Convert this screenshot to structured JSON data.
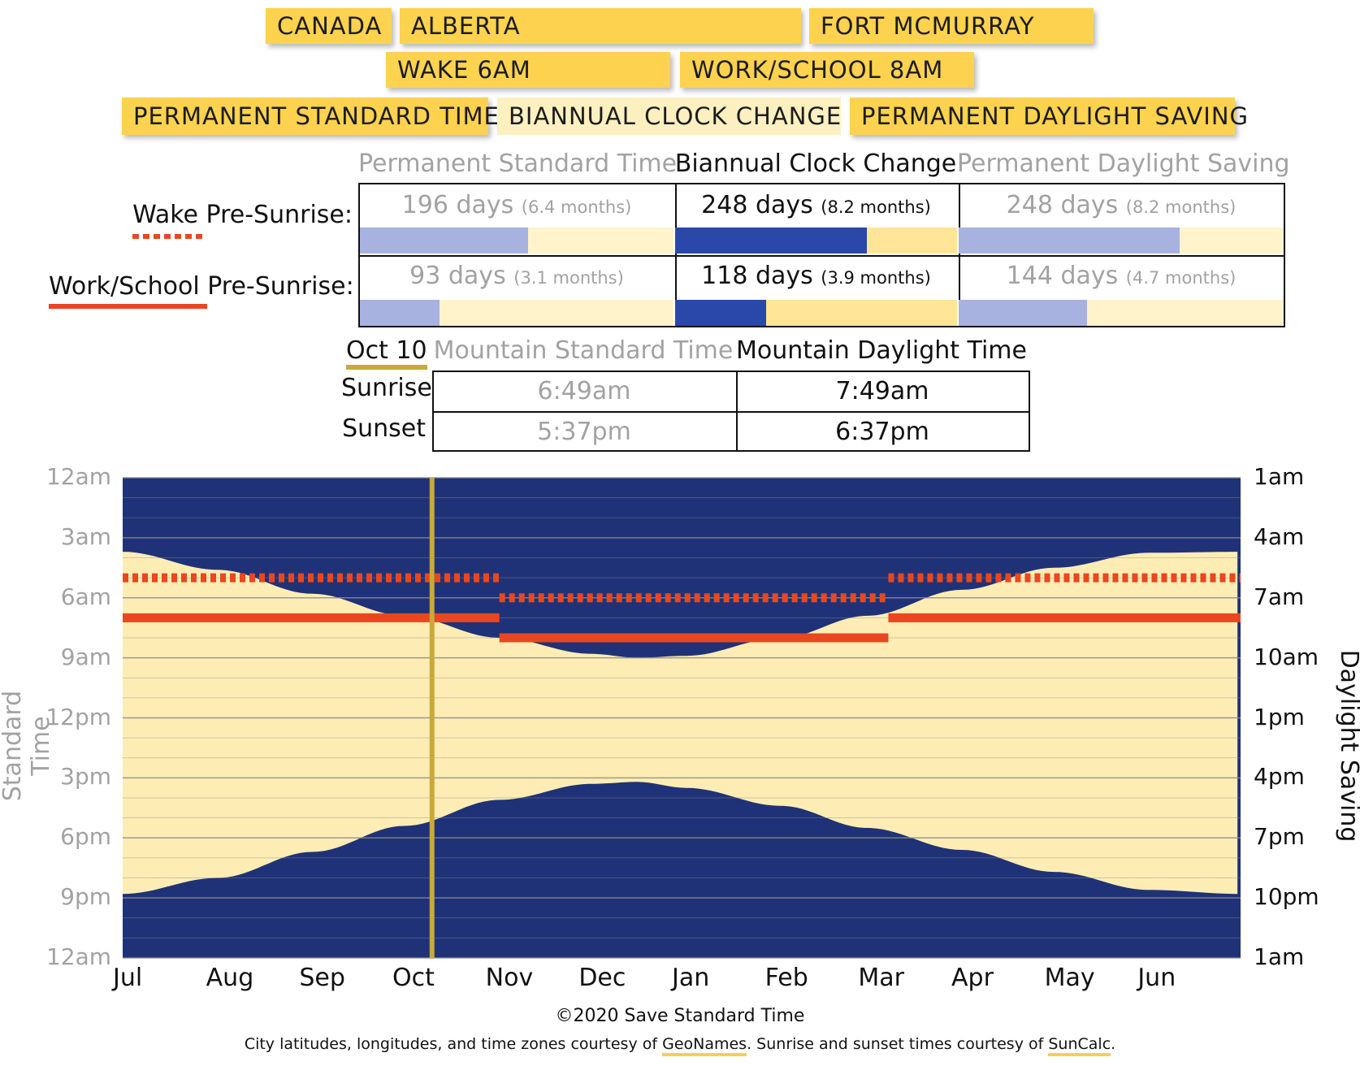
{
  "location": {
    "country": "CANADA",
    "province": "ALBERTA",
    "city": "FORT MCMURRAY"
  },
  "schedule": {
    "wake": "WAKE 6AM",
    "work": "WORK/SCHOOL 8AM"
  },
  "policies": [
    {
      "label": "PERMANENT STANDARD TIME",
      "selected": false
    },
    {
      "label": "BIANNUAL CLOCK CHANGE",
      "selected": true
    },
    {
      "label": "PERMANENT DAYLIGHT SAVING",
      "selected": false
    }
  ],
  "comparison": {
    "columns": [
      "Permanent Standard Time",
      "Biannual Clock Change",
      "Permanent Daylight Saving"
    ],
    "rows": [
      {
        "label_key": "Wake",
        "label_rest": " Pre-Sunrise:",
        "cells": [
          {
            "days": "196 days",
            "months": "(6.4 months)",
            "fraction": 0.537
          },
          {
            "days": "248 days",
            "months": "(8.2 months)",
            "fraction": 0.679
          },
          {
            "days": "248 days",
            "months": "(8.2 months)",
            "fraction": 0.679
          }
        ]
      },
      {
        "label_key": "Work/School",
        "label_rest": " Pre-Sunrise:",
        "cells": [
          {
            "days": "93 days",
            "months": "(3.1 months)",
            "fraction": 0.255
          },
          {
            "days": "118 days",
            "months": "(3.9 months)",
            "fraction": 0.323
          },
          {
            "days": "144 days",
            "months": "(4.7 months)",
            "fraction": 0.395
          }
        ]
      }
    ]
  },
  "day_detail": {
    "date": "Oct 10",
    "col_standard": "Mountain Standard Time",
    "col_daylight": "Mountain Daylight Time",
    "sunrise_label": "Sunrise",
    "sunset_label": "Sunset",
    "sunrise_standard": "6:49am",
    "sunrise_daylight": "7:49am",
    "sunset_standard": "5:37pm",
    "sunset_daylight": "6:37pm"
  },
  "chart_data": {
    "type": "area",
    "x_categories": [
      "Jul",
      "Aug",
      "Sep",
      "Oct",
      "Nov",
      "Dec",
      "Jan",
      "Feb",
      "Mar",
      "Apr",
      "May",
      "Jun"
    ],
    "ylabel_left": "Standard Time",
    "ylabel_right": "Daylight Saving",
    "yticks_left": [
      "12am",
      "3am",
      "6am",
      "9am",
      "12pm",
      "3pm",
      "6pm",
      "9pm",
      "12am"
    ],
    "yticks_right": [
      "1am",
      "4am",
      "7am",
      "10am",
      "1pm",
      "4pm",
      "7pm",
      "10pm",
      "1am"
    ],
    "ylim_hours": [
      0,
      24
    ],
    "x_range_days": [
      0,
      365
    ],
    "grid": true,
    "sunrise_standard_hours": [
      [
        0,
        3.7
      ],
      [
        31,
        4.6
      ],
      [
        62,
        5.8
      ],
      [
        92,
        6.9
      ],
      [
        123,
        8.0
      ],
      [
        153,
        8.8
      ],
      [
        168,
        9.0
      ],
      [
        184,
        8.9
      ],
      [
        215,
        8.0
      ],
      [
        243,
        6.9
      ],
      [
        274,
        5.6
      ],
      [
        304,
        4.5
      ],
      [
        335,
        3.75
      ],
      [
        365,
        3.7
      ]
    ],
    "sunset_standard_hours": [
      [
        0,
        20.8
      ],
      [
        31,
        20.0
      ],
      [
        62,
        18.7
      ],
      [
        92,
        17.4
      ],
      [
        123,
        16.1
      ],
      [
        153,
        15.3
      ],
      [
        168,
        15.2
      ],
      [
        184,
        15.5
      ],
      [
        215,
        16.4
      ],
      [
        243,
        17.5
      ],
      [
        274,
        18.6
      ],
      [
        304,
        19.7
      ],
      [
        335,
        20.6
      ],
      [
        365,
        20.8
      ]
    ],
    "dst_periods_days": [
      [
        0,
        123
      ],
      [
        250,
        365
      ]
    ],
    "wake_time_local": 6,
    "work_time_local": 8,
    "selected_day": 101,
    "colors": {
      "night": "#1f3278",
      "day": "#fdedb4",
      "wake_marker": "#e8471f",
      "work_marker": "#e8471f",
      "selected_day_line": "#c8a93a",
      "gridline": "#8a8a8a"
    }
  },
  "bar_colors": {
    "selected_fill": "#2a47aa",
    "selected_bg": "#fee597",
    "unselected_fill": "#a8b2e0",
    "unselected_bg": "#fef3cb"
  },
  "footer": {
    "copyright": "©2020 Save Standard Time",
    "credit_prefix": "City latitudes, longitudes, and time zones courtesy of ",
    "geonames": "GeoNames",
    "credit_mid": ". Sunrise and sunset times courtesy of ",
    "suncalc": "SunCalc",
    "credit_end": "."
  }
}
